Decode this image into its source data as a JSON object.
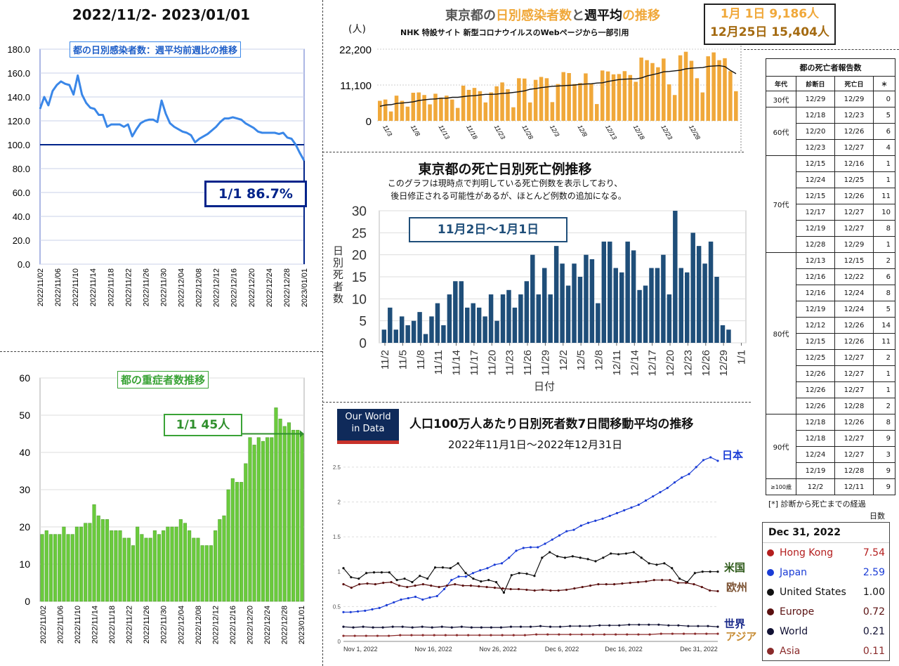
{
  "colors": {
    "blue": "#3a87e8",
    "navy": "#00238a",
    "green": "#6acb3c",
    "orange": "#f0a83a",
    "darkblue": "#1f4e79",
    "japan": "#1a3cd6",
    "hk": "#b41e1e",
    "europe": "#6b1a1a",
    "asia": "#8a2a2a",
    "world": "#1c2b5a"
  },
  "top_left": {
    "period_title": "2022/11/2- 2023/01/01",
    "chart_title": "都の日別感染者数：週平均前週比の推移",
    "callout": "1/1  86.7%"
  },
  "bottom_left": {
    "chart_title": "都の重症者数推移",
    "callout": "1/1 45人"
  },
  "top_center": {
    "title_a": "東京都の",
    "title_b": "日別感染者数",
    "title_c": "と",
    "title_d": "週平均",
    "title_e": "の推移",
    "subtitle": "NHK 特設サイト 新型コロナウイルスのWebページから一部引用",
    "unit": "(人)",
    "box_line1": "1月  1日  9,186人",
    "box_line2": "12月25日 15,404人"
  },
  "middle_center": {
    "title": "東京都の死亡日別死亡例推移",
    "note1": "このグラフは現時点で判明している死亡例数を表示しており、",
    "note2": "後日修正される可能性があるが、ほとんど例数の追加になる。",
    "callout": "11月2日〜1月1日",
    "ylabel": "日別死者数",
    "xlabel": "日付"
  },
  "bottom_center": {
    "logo_line1": "Our World",
    "logo_line2": "in Data",
    "title": "人口100万人あたり日別死者数7日間移動平均の推移",
    "subtitle": "2022年11月1日〜2022年12月31日",
    "label_japan": "日本",
    "label_us": "米国",
    "label_eu": "欧州",
    "label_world": "世界",
    "label_asia": "アジア"
  },
  "death_table": {
    "title": "都の死亡者報告数",
    "headers": [
      "年代",
      "診断日",
      "死亡日",
      "＊"
    ],
    "groups": [
      {
        "age": "30代",
        "rows": [
          [
            "12/29",
            "12/29",
            "0"
          ]
        ]
      },
      {
        "age": "60代",
        "rows": [
          [
            "12/18",
            "12/23",
            "5"
          ],
          [
            "12/20",
            "12/26",
            "6"
          ],
          [
            "12/23",
            "12/27",
            "4"
          ]
        ]
      },
      {
        "age": "70代",
        "rows": [
          [
            "12/15",
            "12/16",
            "1"
          ],
          [
            "12/24",
            "12/25",
            "1"
          ],
          [
            "12/15",
            "12/26",
            "11"
          ],
          [
            "12/17",
            "12/27",
            "10"
          ],
          [
            "12/19",
            "12/27",
            "8"
          ],
          [
            "12/28",
            "12/29",
            "1"
          ]
        ]
      },
      {
        "age": "80代",
        "rows": [
          [
            "12/13",
            "12/15",
            "2"
          ],
          [
            "12/16",
            "12/22",
            "6"
          ],
          [
            "12/16",
            "12/24",
            "8"
          ],
          [
            "12/19",
            "12/24",
            "5"
          ],
          [
            "12/12",
            "12/26",
            "14"
          ],
          [
            "12/15",
            "12/26",
            "11"
          ],
          [
            "12/25",
            "12/27",
            "2"
          ],
          [
            "12/26",
            "12/27",
            "1"
          ],
          [
            "12/26",
            "12/27",
            "1"
          ],
          [
            "12/26",
            "12/28",
            "2"
          ]
        ]
      },
      {
        "age": "90代",
        "rows": [
          [
            "12/18",
            "12/26",
            "8"
          ],
          [
            "12/18",
            "12/27",
            "9"
          ],
          [
            "12/24",
            "12/27",
            "3"
          ],
          [
            "12/19",
            "12/28",
            "9"
          ]
        ]
      },
      {
        "age": "≥100歳",
        "rows": [
          [
            "12/2",
            "12/11",
            "9"
          ]
        ]
      }
    ],
    "footnote1": "[*] 診断から死亡までの経過",
    "footnote2": "日数"
  },
  "legend": {
    "date": "Dec 31, 2022",
    "items": [
      {
        "name": "Hong Kong",
        "value": "7.54",
        "color": "#b41e1e"
      },
      {
        "name": "Japan",
        "value": "2.59",
        "color": "#1a3cd6"
      },
      {
        "name": "United States",
        "value": "1.00",
        "color": "#111111"
      },
      {
        "name": "Europe",
        "value": "0.72",
        "color": "#5a1010"
      },
      {
        "name": "World",
        "value": "0.21",
        "color": "#111133"
      },
      {
        "name": "Asia",
        "value": "0.11",
        "color": "#8a2a2a"
      }
    ]
  },
  "chart_data": [
    {
      "type": "line",
      "title": "都の日別感染者数：週平均前週比の推移",
      "ylim": [
        0,
        180
      ],
      "yticks": [
        "0.0",
        "20.0",
        "40.0",
        "60.0",
        "80.0",
        "100.0",
        "120.0",
        "140.0",
        "160.0",
        "180.0"
      ],
      "xticks": [
        "2022/11/02",
        "2022/11/06",
        "2022/11/10",
        "2022/11/14",
        "2022/11/18",
        "2022/11/22",
        "2022/11/26",
        "2022/11/30",
        "2022/12/04",
        "2022/12/08",
        "2022/12/12",
        "2022/12/16",
        "2022/12/20",
        "2022/12/24",
        "2022/12/28",
        "2023/01/01"
      ],
      "reference_line": 100,
      "values": [
        130,
        140,
        133,
        145,
        150,
        153,
        151,
        150,
        142,
        158,
        142,
        135,
        131,
        130,
        125,
        125,
        115,
        117,
        117,
        117,
        115,
        117,
        107,
        113,
        118,
        120,
        121,
        121,
        119,
        137,
        126,
        118,
        115,
        113,
        111,
        110,
        108,
        102,
        105,
        107,
        109,
        112,
        115,
        119,
        122,
        122,
        123,
        122,
        121,
        118,
        116,
        114,
        111,
        110,
        110,
        110,
        110,
        109,
        110,
        106,
        105,
        100,
        93,
        86.7
      ]
    },
    {
      "type": "bar",
      "title": "都の重症者数推移",
      "ylim": [
        0,
        60
      ],
      "yticks": [
        "0",
        "10",
        "20",
        "30",
        "40",
        "50",
        "60"
      ],
      "xticks": [
        "2022/11/02",
        "2022/11/06",
        "2022/11/10",
        "2022/11/14",
        "2022/11/18",
        "2022/11/22",
        "2022/11/26",
        "2022/11/30",
        "2022/12/04",
        "2022/12/08",
        "2022/12/12",
        "2022/12/16",
        "2022/12/20",
        "2022/12/24",
        "2022/12/28",
        "2023/01/01"
      ],
      "values": [
        18,
        19,
        18,
        18,
        18,
        20,
        18,
        18,
        20,
        20,
        21,
        21,
        26,
        23,
        22,
        22,
        19,
        19,
        19,
        17,
        17,
        15,
        20,
        18,
        17,
        17,
        19,
        18,
        19,
        20,
        20,
        20,
        22,
        21,
        19,
        17,
        17,
        15,
        15,
        15,
        19,
        22,
        23,
        30,
        33,
        32,
        32,
        37,
        44,
        42,
        44,
        43,
        44,
        44,
        52,
        49,
        47,
        48,
        46,
        46,
        45
      ]
    },
    {
      "type": "bar",
      "title": "東京都の日別感染者数と週平均の推移",
      "yticks": [
        "0",
        "11,100",
        "22,200"
      ],
      "ylim": [
        0,
        22200
      ],
      "xticks": [
        "11/3",
        "11/8",
        "11/13",
        "11/18",
        "11/23",
        "11/28",
        "12/3",
        "12/8",
        "12/13",
        "12/18",
        "12/23",
        "12/28"
      ],
      "values": [
        6200,
        6600,
        2900,
        7800,
        6200,
        4400,
        8700,
        8800,
        8000,
        5100,
        8400,
        7200,
        7800,
        6600,
        4000,
        10900,
        9600,
        10200,
        9200,
        5700,
        8800,
        10700,
        11900,
        9800,
        4200,
        13200,
        13100,
        5700,
        12700,
        13600,
        13200,
        5800,
        11400,
        15100,
        14800,
        11400,
        11700,
        14700,
        11500,
        5200,
        15600,
        15300,
        14400,
        14500,
        15400,
        14200,
        12100,
        19600,
        18800,
        17900,
        16600,
        19300,
        11300,
        8000,
        20300,
        21400,
        18600,
        13200,
        8800,
        20000,
        21200,
        18800,
        19400,
        15400,
        9186
      ],
      "avg": [
        4500,
        4900,
        5000,
        5400,
        5500,
        5700,
        5900,
        6300,
        6500,
        6700,
        6800,
        7000,
        7000,
        7300,
        7300,
        7500,
        7700,
        7800,
        8000,
        8200,
        8200,
        8300,
        8500,
        8600,
        8800,
        9000,
        9300,
        9800,
        10000,
        10300,
        10500,
        10700,
        10800,
        10900,
        11000,
        11100,
        11300,
        11400,
        11500,
        11700,
        11800,
        12200,
        12500,
        12800,
        12900,
        13000,
        13000,
        13300,
        13900,
        14300,
        14700,
        15200,
        15300,
        15500,
        15700,
        16100,
        16300,
        16400,
        16500,
        16900,
        17000,
        17100,
        16800,
        15600,
        14600
      ]
    },
    {
      "type": "bar",
      "title": "東京都の死亡日別死亡例推移",
      "ylim": [
        0,
        30
      ],
      "yticks": [
        "0",
        "5",
        "10",
        "15",
        "20",
        "25",
        "30"
      ],
      "xlabel": "日付",
      "ylabel": "日別死者数",
      "xticks": [
        "11/2",
        "11/5",
        "11/8",
        "11/11",
        "11/14",
        "11/17",
        "11/20",
        "11/23",
        "11/26",
        "11/29",
        "12/2",
        "12/5",
        "12/8",
        "12/11",
        "12/14",
        "12/17",
        "12/20",
        "12/23",
        "12/26",
        "12/29",
        "1/1"
      ],
      "values": [
        3,
        8,
        3,
        6,
        4,
        5,
        7,
        2,
        6,
        9,
        4,
        11,
        14,
        14,
        8,
        9,
        8,
        6,
        11,
        5,
        11,
        12,
        8,
        11,
        14,
        20,
        11,
        17,
        11,
        22,
        18,
        13,
        18,
        15,
        20,
        19,
        9,
        23,
        23,
        17,
        16,
        23,
        21,
        12,
        13,
        17,
        17,
        20,
        11,
        30,
        17,
        16,
        25,
        22,
        18,
        23,
        15,
        4,
        3,
        0,
        0
      ]
    },
    {
      "type": "line",
      "title": "人口100万人あたり日別死者数7日間移動平均の推移",
      "xticks": [
        "Nov 1, 2022",
        "Nov 16, 2022",
        "Nov 26, 2022",
        "Dec 6, 2022",
        "Dec 16, 2022",
        "Dec 31, 2022"
      ],
      "yticks": [
        "0",
        "0.5",
        "1",
        "1.5",
        "2",
        "2.5"
      ],
      "ylim": [
        0,
        2.7
      ],
      "series": [
        {
          "name": "日本",
          "values": [
            0.42,
            0.42,
            0.43,
            0.44,
            0.46,
            0.48,
            0.52,
            0.56,
            0.6,
            0.62,
            0.64,
            0.6,
            0.63,
            0.65,
            0.75,
            0.88,
            0.93,
            0.93,
            0.98,
            1.02,
            1.05,
            1.1,
            1.12,
            1.2,
            1.3,
            1.34,
            1.35,
            1.35,
            1.4,
            1.46,
            1.52,
            1.58,
            1.6,
            1.66,
            1.7,
            1.73,
            1.76,
            1.8,
            1.84,
            1.88,
            1.92,
            1.96,
            2.02,
            2.08,
            2.14,
            2.2,
            2.28,
            2.35,
            2.4,
            2.5,
            2.6,
            2.64,
            2.59
          ]
        },
        {
          "name": "米国",
          "values": [
            1.05,
            0.92,
            0.9,
            0.98,
            0.99,
            0.99,
            0.99,
            0.88,
            0.9,
            0.85,
            0.94,
            0.9,
            1.06,
            1.06,
            1.05,
            1.12,
            0.98,
            0.9,
            0.86,
            0.88,
            0.85,
            0.7,
            0.95,
            0.98,
            0.97,
            0.94,
            1.2,
            1.28,
            1.22,
            1.2,
            1.22,
            1.2,
            1.18,
            1.15,
            1.2,
            1.26,
            1.25,
            1.26,
            1.28,
            1.2,
            1.12,
            1.1,
            1.12,
            1.05,
            0.9,
            0.85,
            0.98,
            1.0,
            1.0,
            1.0
          ]
        },
        {
          "name": "欧州",
          "values": [
            0.82,
            0.77,
            0.82,
            0.83,
            0.82,
            0.84,
            0.85,
            0.8,
            0.78,
            0.8,
            0.82,
            0.8,
            0.78,
            0.8,
            0.82,
            0.8,
            0.8,
            0.79,
            0.78,
            0.77,
            0.76,
            0.75,
            0.75,
            0.74,
            0.73,
            0.74,
            0.73,
            0.73,
            0.74,
            0.76,
            0.78,
            0.8,
            0.82,
            0.82,
            0.82,
            0.83,
            0.84,
            0.85,
            0.86,
            0.88,
            0.88,
            0.88,
            0.84,
            0.84,
            0.82,
            0.78,
            0.73,
            0.72
          ]
        },
        {
          "name": "世界",
          "values": [
            0.21,
            0.2,
            0.21,
            0.2,
            0.2,
            0.21,
            0.21,
            0.2,
            0.21,
            0.2,
            0.21,
            0.2,
            0.21,
            0.2,
            0.2,
            0.2,
            0.2,
            0.21,
            0.21,
            0.21,
            0.22,
            0.21,
            0.21,
            0.22,
            0.22,
            0.22,
            0.23,
            0.23,
            0.23,
            0.24,
            0.24,
            0.24,
            0.24,
            0.23,
            0.23,
            0.22,
            0.22,
            0.22,
            0.21
          ]
        },
        {
          "name": "アジア",
          "values": [
            0.08,
            0.08,
            0.08,
            0.08,
            0.08,
            0.09,
            0.09,
            0.09,
            0.09,
            0.09,
            0.09,
            0.09,
            0.09,
            0.09,
            0.09,
            0.09,
            0.09,
            0.1,
            0.1,
            0.1,
            0.1,
            0.1,
            0.1,
            0.1,
            0.1,
            0.1,
            0.1,
            0.1,
            0.11,
            0.11,
            0.11,
            0.11,
            0.11,
            0.11
          ]
        }
      ]
    }
  ]
}
